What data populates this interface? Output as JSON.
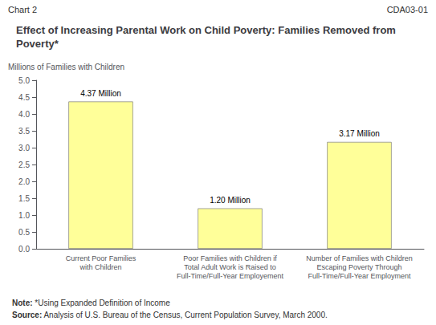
{
  "chart_data": {
    "type": "bar",
    "title": "Effect of Increasing Parental Work on Child Poverty: Families Removed from Poverty*",
    "header": [
      "Chart 2",
      "CDA03-01"
    ],
    "ylabel": "Millions of Families with Children",
    "categories": [
      "Current Poor Families\nwith Children",
      "Poor Families with Children if\nTotal Adult Work is Raised to\nFull-Time/Full-Year Employement",
      "Number of Families with Children\nEscaping Poverty Through\nFull-Time/Full-Year Employment"
    ],
    "values": [
      4.37,
      1.2,
      3.17
    ],
    "value_labels": [
      "4.37 Million",
      "1.20 Million",
      "3.17 Million"
    ],
    "data_labels": true,
    "color": "#ffff99",
    "ylim": [
      0,
      5.0
    ],
    "yticks": [
      {
        "value": 0,
        "label": "0.0"
      },
      0.5,
      {
        "value": 1,
        "label": "1.0"
      },
      1.5,
      {
        "value": 2,
        "label": "2.0"
      },
      2.5,
      {
        "value": 3,
        "label": "3.0"
      },
      3.5,
      {
        "value": 4,
        "label": "4.0"
      },
      4.5,
      {
        "value": 5,
        "label": "5.0"
      }
    ],
    "grid": false,
    "notes": [
      "Note: *Using Expanded Definition of Income",
      "Source: Analysis of U.S. Bureau of the Census, Current Population Survey, March 2000."
    ]
  }
}
